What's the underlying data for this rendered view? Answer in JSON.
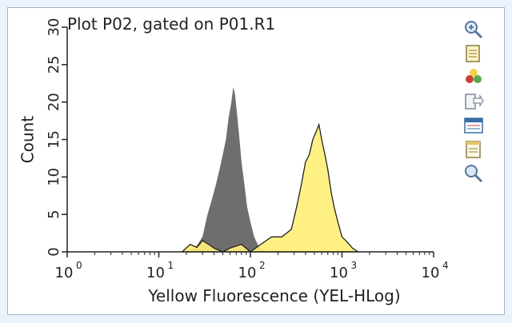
{
  "chart_data": {
    "type": "area",
    "title": "Plot P02, gated on P01.R1",
    "xlabel": "Yellow Fluorescence (YEL-HLog)",
    "ylabel": "Count",
    "xscale": "log",
    "xlim": [
      1,
      10000
    ],
    "ylim": [
      0,
      30
    ],
    "x_ticks": [
      {
        "exp": 0,
        "value": 1
      },
      {
        "exp": 1,
        "value": 10
      },
      {
        "exp": 2,
        "value": 100
      },
      {
        "exp": 3,
        "value": 1000
      },
      {
        "exp": 4,
        "value": 10000
      }
    ],
    "y_ticks": [
      0,
      5,
      10,
      15,
      20,
      25,
      30
    ],
    "grid": false,
    "series": [
      {
        "color": "#6e6e6e",
        "x": [
          18,
          25,
          30,
          34,
          38,
          42,
          46,
          50,
          54,
          58,
          62,
          65,
          68,
          72,
          76,
          80,
          86,
          92,
          100,
          110,
          120,
          130,
          150
        ],
        "y": [
          0,
          0.5,
          2,
          5,
          7,
          9,
          11,
          13,
          15,
          18,
          20,
          22,
          21,
          18,
          15,
          12,
          9,
          6,
          4,
          2,
          1,
          0.3,
          0
        ]
      },
      {
        "color": "#ffef7a",
        "outline": "#222222",
        "x": [
          18,
          22,
          26,
          30,
          35,
          40,
          50,
          60,
          80,
          100,
          130,
          170,
          220,
          280,
          320,
          360,
          400,
          440,
          480,
          520,
          560,
          600,
          650,
          700,
          760,
          820,
          900,
          1000,
          1100,
          1200,
          1300,
          1500
        ],
        "y": [
          0,
          1,
          0.6,
          1.5,
          1,
          0.5,
          0,
          0.5,
          1,
          0,
          1,
          2,
          2,
          3,
          6,
          9,
          12,
          13,
          15,
          16,
          17,
          15,
          13,
          11,
          8,
          6,
          4,
          2,
          1.5,
          1,
          0.5,
          0
        ]
      }
    ]
  },
  "toolbar": {
    "icons": [
      "zoom-in-icon",
      "copy-icon",
      "color-palette-icon",
      "export-icon",
      "statistics-icon",
      "properties-icon",
      "zoom-out-icon"
    ]
  }
}
